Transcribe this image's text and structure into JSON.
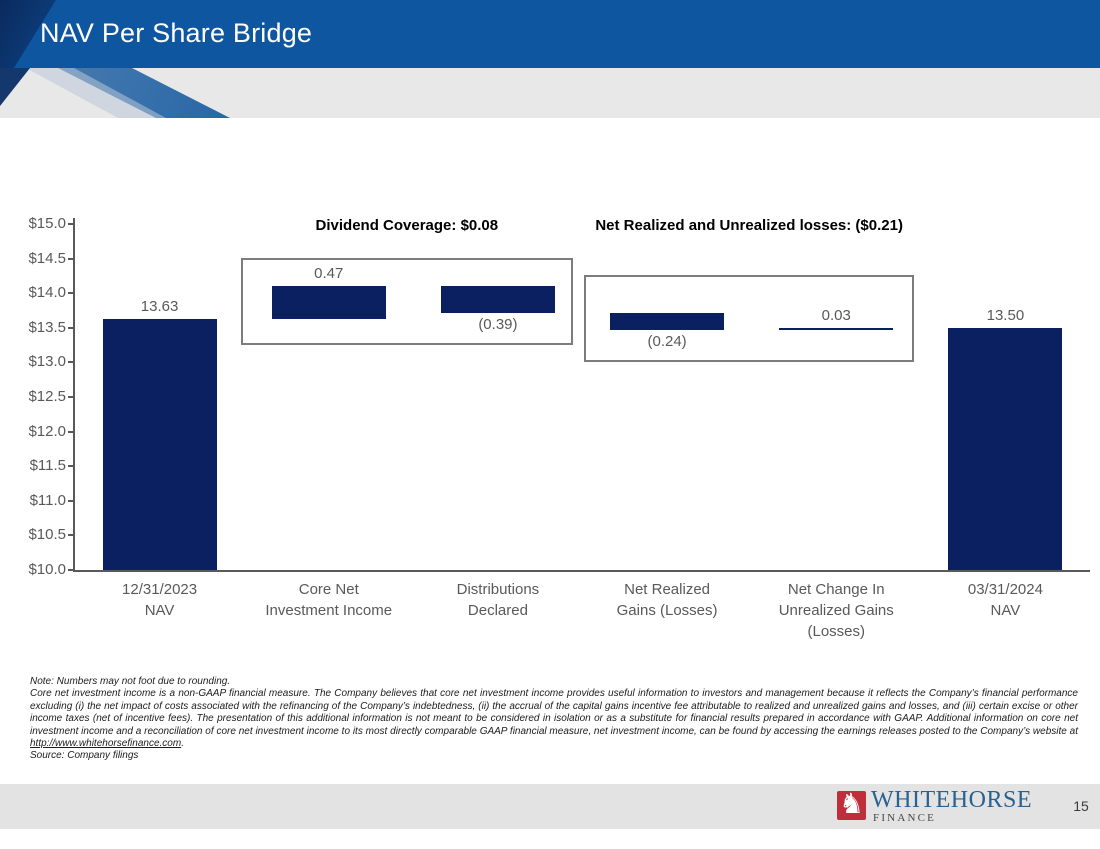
{
  "slide": {
    "title": "NAV Per Share Bridge",
    "page_number": "15"
  },
  "colors": {
    "header_blue": "#0e57a0",
    "bar_navy": "#0a2060",
    "label_gray": "#595959",
    "annotation_border_gray": "#7c7c7c",
    "logo_red": "#be2f3b",
    "logo_blue": "#2a6191"
  },
  "chart_data": {
    "type": "bar",
    "subtype": "waterfall",
    "grid": "off",
    "legend": "none",
    "bar_color": "#0a2060",
    "y_axis": {
      "min": 10.0,
      "max": 15.0,
      "tick_step": 0.5,
      "tick_labels": [
        "$15.0",
        "$14.5",
        "$14.0",
        "$13.5",
        "$13.0",
        "$12.5",
        "$12.0",
        "$11.5",
        "$11.0",
        "$10.5",
        "$10.0"
      ]
    },
    "bars": [
      {
        "category_lines": "12/31/2023\nNAV",
        "start": 10.0,
        "end": 13.63,
        "value": 13.63,
        "label": "13.63",
        "label_position": "above"
      },
      {
        "category_lines": "Core Net\nInvestment Income",
        "start": 13.63,
        "end": 14.1,
        "value": 0.47,
        "label": "0.47",
        "label_position": "above"
      },
      {
        "category_lines": "Distributions\nDeclared",
        "start": 14.1,
        "end": 13.71,
        "value": -0.39,
        "label": "(0.39)",
        "label_position": "below"
      },
      {
        "category_lines": "Net Realized\nGains (Losses)",
        "start": 13.71,
        "end": 13.47,
        "value": -0.24,
        "label": "(0.24)",
        "label_position": "below"
      },
      {
        "category_lines": "Net Change In\nUnrealized Gains\n(Losses)",
        "start": 13.47,
        "end": 13.5,
        "value": 0.03,
        "label": "0.03",
        "label_position": "above"
      },
      {
        "category_lines": "03/31/2024\nNAV",
        "start": 10.0,
        "end": 13.5,
        "value": 13.5,
        "label": "13.50",
        "label_position": "above"
      }
    ],
    "annotations": [
      {
        "label": "Dividend Coverage: $0.08",
        "boxed_bars": [
          1,
          2
        ]
      },
      {
        "label": "Net Realized and Unrealized losses: ($0.21)",
        "boxed_bars": [
          3,
          4
        ]
      }
    ]
  },
  "footnote": {
    "line1": "Note: Numbers may not foot due to rounding.",
    "body": "Core net investment income is a non-GAAP financial measure. The Company believes that core net investment income provides useful information to investors and management because it reflects the Company’s financial performance excluding (i) the net impact of costs associated with the refinancing of the Company’s indebtedness, (ii) the accrual of the capital gains incentive fee attributable to realized and unrealized gains and losses, and (iii) certain excise or other income taxes (net of incentive fees). The presentation of this additional information is not meant to be considered in isolation or as a substitute for financial results prepared in accordance with GAAP. Additional information on core net investment income and a reconciliation of core net investment income to its most directly comparable GAAP financial measure, net investment income, can be found by accessing the earnings releases posted to the Company’s website at ",
    "link": "http://www.whitehorsefinance.com",
    "after_link": ".",
    "source": "Source: Company filings"
  },
  "logo": {
    "brand": "WHITEHORSE",
    "division": "FINANCE"
  }
}
